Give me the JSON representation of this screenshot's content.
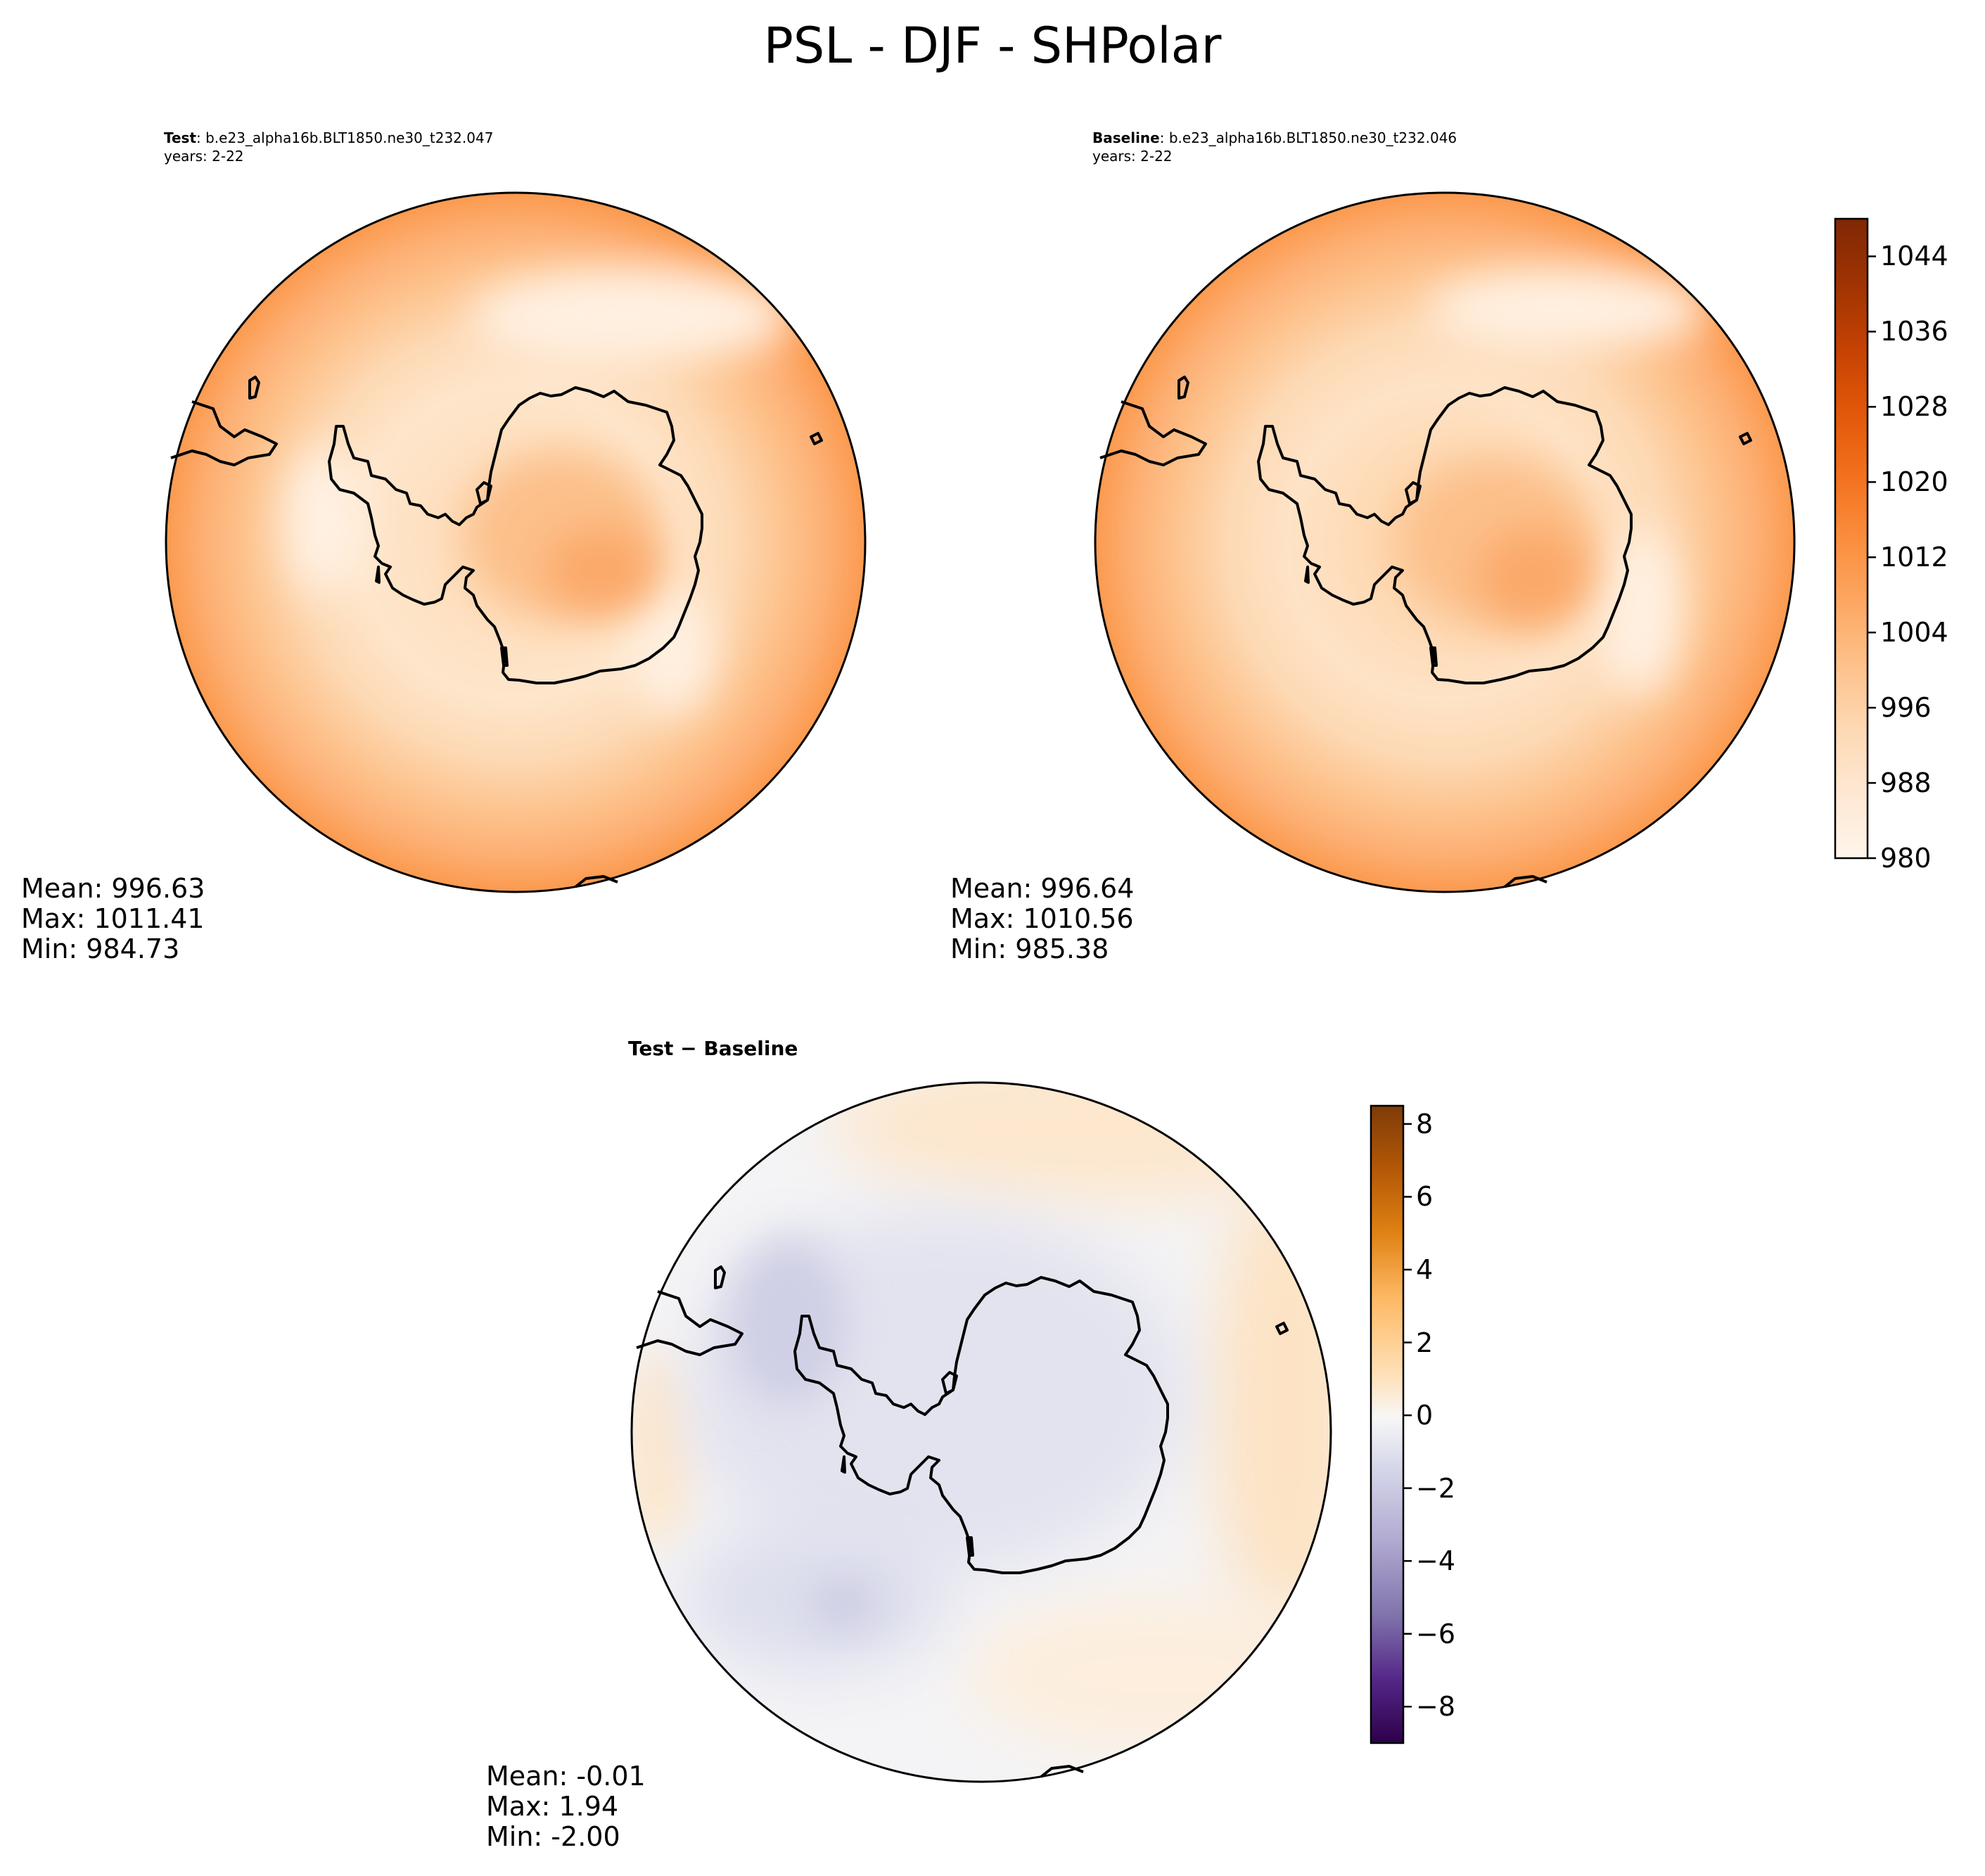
{
  "figure_title": "PSL - DJF - SHPolar",
  "colors": {
    "oranges": [
      "#fff5eb",
      "#fee8d3",
      "#fdd9b4",
      "#fdc28c",
      "#fda762",
      "#fb8d3d",
      "#f2701d",
      "#e25609",
      "#c44103",
      "#9f3303",
      "#7f2704"
    ],
    "purple_orange": [
      "#2d004b",
      "#542788",
      "#8073ac",
      "#b2abd2",
      "#d8daeb",
      "#f7f7f7",
      "#fee0b6",
      "#fdb863",
      "#e08214",
      "#b35806",
      "#7f3b08"
    ],
    "land_outline": "#000000"
  },
  "panels": {
    "test": {
      "label_bold": "Test",
      "label_rest": ": b.e23_alpha16b.BLT1850.ne30_t232.047",
      "years": "years: 2-22",
      "mean": "Mean: 996.63",
      "max": "Max: 1011.41",
      "min": "Min: 984.73"
    },
    "baseline": {
      "label_bold": "Baseline",
      "label_rest": ": b.e23_alpha16b.BLT1850.ne30_t232.046",
      "years": "years: 2-22",
      "mean": "Mean: 996.64",
      "max": "Max: 1010.56",
      "min": "Min: 985.38"
    },
    "difference": {
      "title": "Test − Baseline",
      "mean": "Mean: -0.01",
      "max": "Max:  1.94",
      "min": "Min: -2.00"
    }
  },
  "chart_data": [
    {
      "type": "heatmap",
      "projection": "south-polar-stereographic",
      "title": "Test : b.e23_alpha16b.BLT1850.ne30_t232.047",
      "variable": "PSL",
      "season": "DJF",
      "stats": {
        "mean": 996.63,
        "max": 1011.41,
        "min": 984.73
      },
      "colormap": "Oranges"
    },
    {
      "type": "heatmap",
      "projection": "south-polar-stereographic",
      "title": "Baseline : b.e23_alpha16b.BLT1850.ne30_t232.046",
      "variable": "PSL",
      "season": "DJF",
      "stats": {
        "mean": 996.64,
        "max": 1010.56,
        "min": 985.38
      },
      "colorbar": {
        "range": [
          980,
          1048
        ],
        "ticks": [
          980,
          988,
          996,
          1004,
          1012,
          1020,
          1028,
          1036,
          1044
        ]
      },
      "colormap": "Oranges"
    },
    {
      "type": "heatmap",
      "projection": "south-polar-stereographic",
      "title": "Test − Baseline",
      "variable": "PSL",
      "season": "DJF",
      "stats": {
        "mean": -0.01,
        "max": 1.94,
        "min": -2.0
      },
      "colorbar": {
        "range": [
          -9,
          8.5
        ],
        "ticks": [
          -8,
          -6,
          -4,
          -2,
          0,
          2,
          4,
          6,
          8
        ],
        "tick_labels": [
          "−8",
          "−6",
          "−4",
          "−2",
          "0",
          "2",
          "4",
          "6",
          "8"
        ]
      },
      "colormap": "PuOr_r"
    }
  ]
}
